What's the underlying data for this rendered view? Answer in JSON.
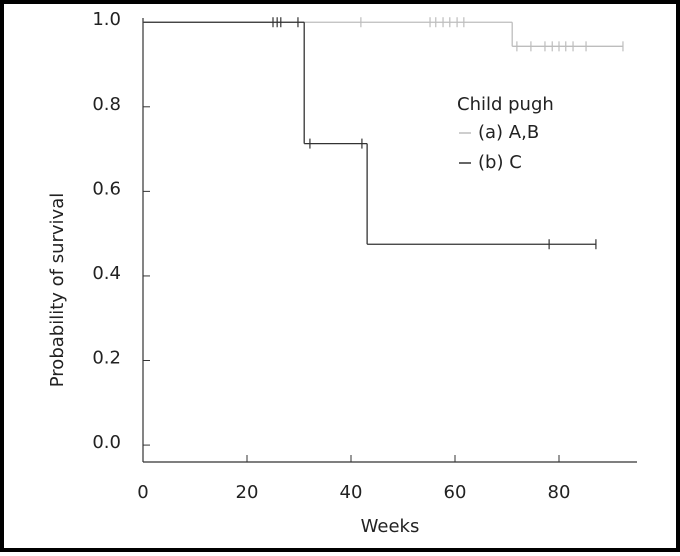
{
  "chart_data": {
    "type": "survival",
    "xlabel": "Weeks",
    "ylabel": "Probability of survival",
    "xlim": [
      0,
      95
    ],
    "ylim": [
      -0.04,
      1.01
    ],
    "xticks": [
      0,
      20,
      40,
      60,
      80
    ],
    "yticks": [
      {
        "value": 0,
        "label": "0.0"
      },
      {
        "value": 0.2,
        "label": "0.2"
      },
      {
        "value": 0.4,
        "label": "0.4"
      },
      {
        "value": 0.6,
        "label": "0.6"
      },
      {
        "value": 0.8,
        "label": "0.8"
      },
      {
        "value": 1,
        "label": "1.0"
      }
    ],
    "legend_title": "Child pugh",
    "series": [
      {
        "name": "(a) A,B",
        "color": "#bdbdbd",
        "x": [
          0,
          71,
          92.3
        ],
        "values": [
          1.0,
          0.943,
          0.943
        ],
        "censored": [
          41.9,
          55.2,
          56.3,
          57.7,
          59,
          60.4,
          61.7,
          71.9,
          74.6,
          77.3,
          78.7,
          80,
          81.3,
          82.7,
          85.2,
          92.3
        ]
      },
      {
        "name": "(b) C",
        "color": "#333333",
        "x": [
          0,
          31,
          43.1,
          87.1
        ],
        "values": [
          1.0,
          0.713,
          0.475,
          0.475
        ],
        "censored": [
          25,
          25.8,
          26.5,
          29.8,
          32.1,
          42.1,
          78.1,
          87.1
        ]
      }
    ]
  }
}
